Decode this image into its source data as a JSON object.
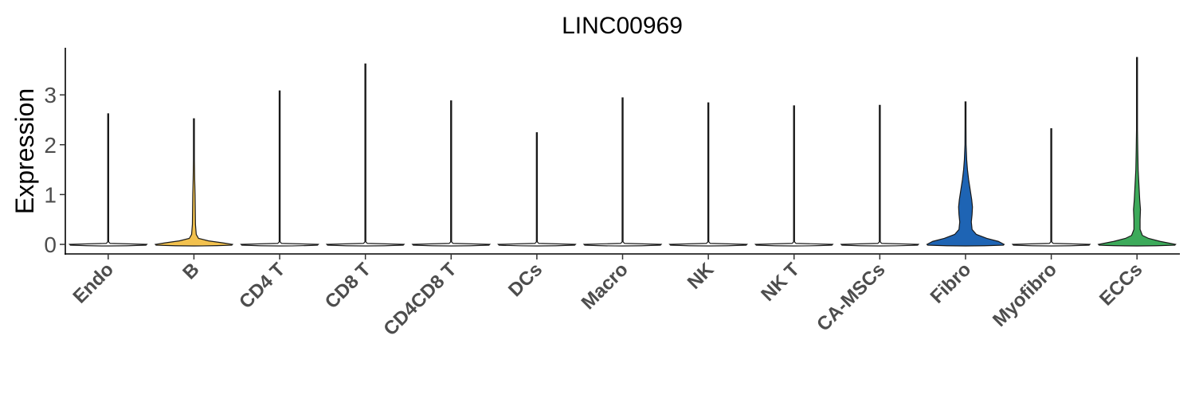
{
  "chart_data": {
    "type": "violin",
    "title": "LINC00969",
    "xlabel": "",
    "ylabel": "Expression",
    "ylim": [
      -0.2,
      3.9
    ],
    "yticks": [
      0,
      1,
      2,
      3
    ],
    "grid": false,
    "legend": "none",
    "categories": [
      "Endo",
      "B",
      "CD4 T",
      "CD8 T",
      "CD4CD8 T",
      "DCs",
      "Macro",
      "NK",
      "NK T",
      "CA-MSCs",
      "Fibro",
      "Myofibro",
      "ECCs"
    ],
    "series": [
      {
        "color": "#FFFFFF",
        "max": 2.62,
        "density": [
          [
            0,
            1.0
          ],
          [
            0.02,
            0.05
          ],
          [
            0.05,
            0.008
          ],
          [
            0.1,
            0.004
          ],
          [
            2.62,
            0.003
          ]
        ]
      },
      {
        "color": "#F2C14E",
        "max": 2.52,
        "density": [
          [
            0,
            1.0
          ],
          [
            0.03,
            0.75
          ],
          [
            0.07,
            0.38
          ],
          [
            0.12,
            0.12
          ],
          [
            0.2,
            0.06
          ],
          [
            0.4,
            0.04
          ],
          [
            0.7,
            0.035
          ],
          [
            1.0,
            0.03
          ],
          [
            1.3,
            0.02
          ],
          [
            1.7,
            0.012
          ],
          [
            2.0,
            0.006
          ],
          [
            2.52,
            0.003
          ]
        ]
      },
      {
        "color": "#FFFFFF",
        "max": 3.08,
        "density": [
          [
            0,
            1.0
          ],
          [
            0.02,
            0.05
          ],
          [
            0.05,
            0.008
          ],
          [
            0.1,
            0.004
          ],
          [
            3.08,
            0.003
          ]
        ]
      },
      {
        "color": "#FFFFFF",
        "max": 3.62,
        "density": [
          [
            0,
            1.0
          ],
          [
            0.02,
            0.05
          ],
          [
            0.05,
            0.008
          ],
          [
            0.1,
            0.004
          ],
          [
            3.62,
            0.003
          ]
        ]
      },
      {
        "color": "#FFFFFF",
        "max": 2.88,
        "density": [
          [
            0,
            1.0
          ],
          [
            0.02,
            0.05
          ],
          [
            0.05,
            0.008
          ],
          [
            0.1,
            0.004
          ],
          [
            2.88,
            0.003
          ]
        ]
      },
      {
        "color": "#FFFFFF",
        "max": 2.24,
        "density": [
          [
            0,
            1.0
          ],
          [
            0.02,
            0.05
          ],
          [
            0.05,
            0.008
          ],
          [
            0.1,
            0.004
          ],
          [
            2.24,
            0.003
          ]
        ]
      },
      {
        "color": "#FFFFFF",
        "max": 2.94,
        "density": [
          [
            0,
            1.0
          ],
          [
            0.02,
            0.05
          ],
          [
            0.05,
            0.008
          ],
          [
            0.1,
            0.004
          ],
          [
            2.94,
            0.003
          ]
        ]
      },
      {
        "color": "#FFFFFF",
        "max": 2.84,
        "density": [
          [
            0,
            1.0
          ],
          [
            0.02,
            0.05
          ],
          [
            0.05,
            0.008
          ],
          [
            0.1,
            0.004
          ],
          [
            2.84,
            0.003
          ]
        ]
      },
      {
        "color": "#FFFFFF",
        "max": 2.78,
        "density": [
          [
            0,
            1.0
          ],
          [
            0.02,
            0.05
          ],
          [
            0.05,
            0.008
          ],
          [
            0.1,
            0.004
          ],
          [
            2.78,
            0.003
          ]
        ]
      },
      {
        "color": "#FFFFFF",
        "max": 2.79,
        "density": [
          [
            0,
            1.0
          ],
          [
            0.02,
            0.05
          ],
          [
            0.05,
            0.008
          ],
          [
            0.1,
            0.004
          ],
          [
            2.79,
            0.003
          ]
        ]
      },
      {
        "color": "#1E64B4",
        "max": 2.86,
        "density": [
          [
            0,
            1.0
          ],
          [
            0.06,
            0.85
          ],
          [
            0.12,
            0.55
          ],
          [
            0.2,
            0.28
          ],
          [
            0.3,
            0.17
          ],
          [
            0.45,
            0.15
          ],
          [
            0.6,
            0.17
          ],
          [
            0.75,
            0.18
          ],
          [
            0.9,
            0.16
          ],
          [
            1.1,
            0.12
          ],
          [
            1.3,
            0.08
          ],
          [
            1.5,
            0.05
          ],
          [
            1.7,
            0.03
          ],
          [
            2.0,
            0.015
          ],
          [
            2.4,
            0.006
          ],
          [
            2.86,
            0.003
          ]
        ]
      },
      {
        "color": "#FFFFFF",
        "max": 2.32,
        "density": [
          [
            0,
            1.0
          ],
          [
            0.02,
            0.05
          ],
          [
            0.05,
            0.008
          ],
          [
            0.1,
            0.004
          ],
          [
            2.32,
            0.003
          ]
        ]
      },
      {
        "color": "#3CAA5A",
        "max": 3.75,
        "density": [
          [
            0,
            1.0
          ],
          [
            0.06,
            0.6
          ],
          [
            0.12,
            0.3
          ],
          [
            0.18,
            0.14
          ],
          [
            0.3,
            0.08
          ],
          [
            0.5,
            0.08
          ],
          [
            0.7,
            0.09
          ],
          [
            0.9,
            0.07
          ],
          [
            1.2,
            0.05
          ],
          [
            1.5,
            0.03
          ],
          [
            1.9,
            0.02
          ],
          [
            2.3,
            0.012
          ],
          [
            2.8,
            0.006
          ],
          [
            3.3,
            0.004
          ],
          [
            3.75,
            0.002
          ]
        ]
      }
    ]
  }
}
